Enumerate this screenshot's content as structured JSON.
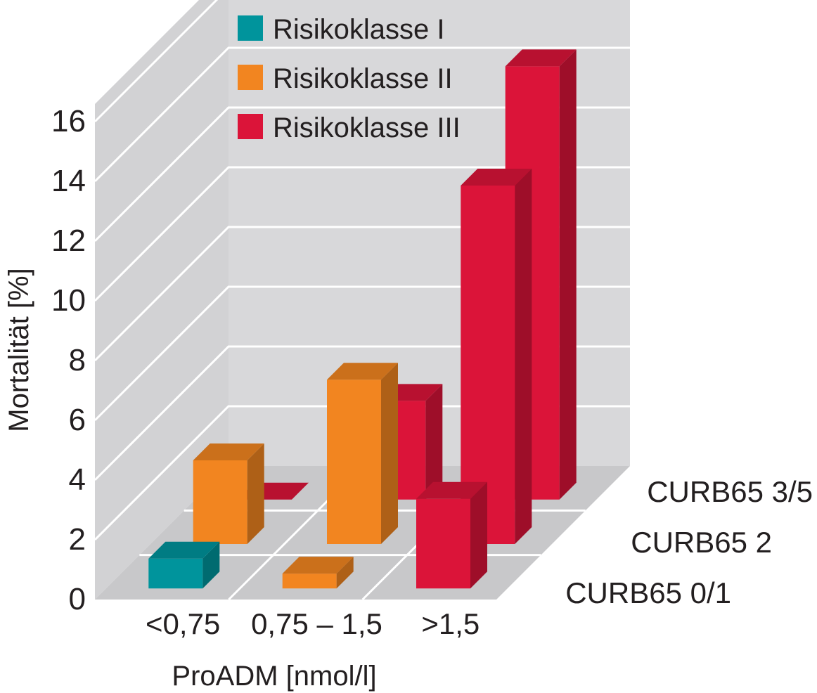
{
  "chart_data": {
    "type": "bar",
    "xlabel": "ProADM [nmol/l]",
    "ylabel": "Mortalität [%]",
    "ylim": [
      0,
      16
    ],
    "yticks": [
      "0",
      "2",
      "4",
      "6",
      "8",
      "10",
      "12",
      "14",
      "16"
    ],
    "categories": [
      "<0,75",
      "0,75 – 1,5",
      ">1,5"
    ],
    "depth_categories": [
      "CURB65 0/1",
      "CURB65 2",
      "CURB65 3/5"
    ],
    "series": [
      {
        "name": "Risikoklasse I",
        "color": "#00949c"
      },
      {
        "name": "Risikoklasse II",
        "color": "#f28520"
      },
      {
        "name": "Risikoklasse III",
        "color": "#db1439"
      }
    ],
    "bars": [
      {
        "x": "<0,75",
        "depth": "CURB65 0/1",
        "series": "Risikoklasse I",
        "value": 1.0
      },
      {
        "x": "0,75 – 1,5",
        "depth": "CURB65 0/1",
        "series": "Risikoklasse II",
        "value": 0.5
      },
      {
        "x": ">1,5",
        "depth": "CURB65 0/1",
        "series": "Risikoklasse III",
        "value": 3.0
      },
      {
        "x": "<0,75",
        "depth": "CURB65 2",
        "series": "Risikoklasse II",
        "value": 2.8
      },
      {
        "x": "0,75 – 1,5",
        "depth": "CURB65 2",
        "series": "Risikoklasse II",
        "value": 5.5
      },
      {
        "x": ">1,5",
        "depth": "CURB65 2",
        "series": "Risikoklasse III",
        "value": 12.0
      },
      {
        "x": "<0,75",
        "depth": "CURB65 3/5",
        "series": "Risikoklasse III",
        "value": 0.0
      },
      {
        "x": "0,75 – 1,5",
        "depth": "CURB65 3/5",
        "series": "Risikoklasse III",
        "value": 3.3
      },
      {
        "x": ">1,5",
        "depth": "CURB65 3/5",
        "series": "Risikoklasse III",
        "value": 14.5
      }
    ],
    "grid": true,
    "legend_position": "top"
  }
}
